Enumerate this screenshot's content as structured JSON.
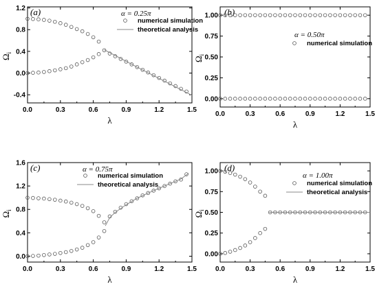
{
  "chart_data": [
    {
      "type": "scatter",
      "panel_label": "(a)",
      "alpha_label": "α = 0.25π",
      "xlabel": "λ",
      "ylabel": "Ω",
      "ylabel_sub": "i",
      "xlim": [
        0,
        1.5
      ],
      "ylim": [
        -0.55,
        1.22
      ],
      "xticks": [
        "0.0",
        "0.3",
        "0.6",
        "0.9",
        "1.2",
        "1.5"
      ],
      "xtick_values": [
        0,
        0.3,
        0.6,
        0.9,
        1.2,
        1.5
      ],
      "yticks": [
        "-0.4",
        "0.0",
        "0.4",
        "0.8",
        "1.2"
      ],
      "ytick_values": [
        -0.4,
        0,
        0.4,
        0.8,
        1.2
      ],
      "legend": [
        "numerical simulation",
        "theoretical    analysis"
      ],
      "series": [
        {
          "name": "numerical simulation",
          "kind": "markers",
          "points": [
            [
              0.0,
              1.0
            ],
            [
              0.05,
              0.996
            ],
            [
              0.1,
              0.99
            ],
            [
              0.15,
              0.98
            ],
            [
              0.2,
              0.965
            ],
            [
              0.25,
              0.945
            ],
            [
              0.3,
              0.92
            ],
            [
              0.35,
              0.89
            ],
            [
              0.4,
              0.85
            ],
            [
              0.45,
              0.81
            ],
            [
              0.5,
              0.77
            ],
            [
              0.55,
              0.72
            ],
            [
              0.6,
              0.66
            ],
            [
              0.65,
              0.58
            ],
            [
              0.0,
              0.0
            ],
            [
              0.05,
              0.005
            ],
            [
              0.1,
              0.01
            ],
            [
              0.15,
              0.02
            ],
            [
              0.2,
              0.035
            ],
            [
              0.25,
              0.05
            ],
            [
              0.3,
              0.07
            ],
            [
              0.35,
              0.09
            ],
            [
              0.4,
              0.12
            ],
            [
              0.45,
              0.16
            ],
            [
              0.5,
              0.2
            ],
            [
              0.55,
              0.24
            ],
            [
              0.6,
              0.29
            ],
            [
              0.65,
              0.35
            ],
            [
              0.7,
              0.42
            ],
            [
              0.75,
              0.36
            ],
            [
              0.8,
              0.31
            ],
            [
              0.85,
              0.26
            ],
            [
              0.9,
              0.21
            ],
            [
              0.95,
              0.16
            ],
            [
              1.0,
              0.11
            ],
            [
              1.05,
              0.06
            ],
            [
              1.1,
              0.01
            ],
            [
              1.15,
              -0.04
            ],
            [
              1.2,
              -0.09
            ],
            [
              1.25,
              -0.14
            ],
            [
              1.3,
              -0.19
            ],
            [
              1.35,
              -0.24
            ],
            [
              1.4,
              -0.29
            ],
            [
              1.45,
              -0.34
            ]
          ]
        },
        {
          "name": "theoretical    analysis",
          "kind": "line",
          "points": [
            [
              0.7,
              0.43
            ],
            [
              1.0,
              0.11
            ],
            [
              1.5,
              -0.41
            ]
          ]
        }
      ]
    },
    {
      "type": "scatter",
      "panel_label": "(b)",
      "alpha_label": "α = 0.50π",
      "xlabel": "λ",
      "ylabel": "Ω",
      "ylabel_sub": "i",
      "xlim": [
        0,
        1.5
      ],
      "ylim": [
        -0.1,
        1.1
      ],
      "xticks": [
        "0.0",
        "0.3",
        "0.6",
        "0.9",
        "1.2",
        "1.5"
      ],
      "xtick_values": [
        0,
        0.3,
        0.6,
        0.9,
        1.2,
        1.5
      ],
      "yticks": [
        "0.00",
        "0.25",
        "0.50",
        "0.75",
        "1.00"
      ],
      "ytick_values": [
        0,
        0.25,
        0.5,
        0.75,
        1.0
      ],
      "legend": [
        "numerical simulation"
      ],
      "series": [
        {
          "name": "numerical simulation",
          "kind": "markers",
          "points": [
            [
              0.0,
              1.0
            ],
            [
              0.05,
              1.0
            ],
            [
              0.1,
              1.0
            ],
            [
              0.15,
              1.0
            ],
            [
              0.2,
              1.0
            ],
            [
              0.25,
              1.0
            ],
            [
              0.3,
              1.0
            ],
            [
              0.35,
              1.0
            ],
            [
              0.4,
              1.0
            ],
            [
              0.45,
              1.0
            ],
            [
              0.5,
              1.0
            ],
            [
              0.55,
              1.0
            ],
            [
              0.6,
              1.0
            ],
            [
              0.65,
              1.0
            ],
            [
              0.7,
              1.0
            ],
            [
              0.75,
              1.0
            ],
            [
              0.8,
              1.0
            ],
            [
              0.85,
              1.0
            ],
            [
              0.9,
              1.0
            ],
            [
              0.95,
              1.0
            ],
            [
              1.0,
              1.0
            ],
            [
              1.05,
              1.0
            ],
            [
              1.1,
              1.0
            ],
            [
              1.15,
              1.0
            ],
            [
              1.2,
              1.0
            ],
            [
              1.25,
              1.0
            ],
            [
              1.3,
              1.0
            ],
            [
              1.35,
              1.0
            ],
            [
              1.4,
              1.0
            ],
            [
              1.45,
              1.0
            ],
            [
              0.0,
              0.0
            ],
            [
              0.05,
              0.0
            ],
            [
              0.1,
              0.0
            ],
            [
              0.15,
              0.0
            ],
            [
              0.2,
              0.0
            ],
            [
              0.25,
              0.0
            ],
            [
              0.3,
              0.0
            ],
            [
              0.35,
              0.0
            ],
            [
              0.4,
              0.0
            ],
            [
              0.45,
              0.0
            ],
            [
              0.5,
              0.0
            ],
            [
              0.55,
              0.0
            ],
            [
              0.6,
              0.0
            ],
            [
              0.65,
              0.0
            ],
            [
              0.7,
              0.0
            ],
            [
              0.75,
              0.0
            ],
            [
              0.8,
              0.0
            ],
            [
              0.85,
              0.0
            ],
            [
              0.9,
              0.0
            ],
            [
              0.95,
              0.0
            ],
            [
              1.0,
              0.0
            ],
            [
              1.05,
              0.0
            ],
            [
              1.1,
              0.0
            ],
            [
              1.15,
              0.0
            ],
            [
              1.2,
              0.0
            ],
            [
              1.25,
              0.0
            ],
            [
              1.3,
              0.0
            ],
            [
              1.35,
              0.0
            ],
            [
              1.4,
              0.0
            ],
            [
              1.45,
              0.0
            ]
          ]
        }
      ]
    },
    {
      "type": "scatter",
      "panel_label": "(c)",
      "alpha_label": "α = 0.75π",
      "xlabel": "λ",
      "ylabel": "Ω",
      "ylabel_sub": "i",
      "xlim": [
        0,
        1.5
      ],
      "ylim": [
        -0.1,
        1.6
      ],
      "xticks": [
        "0.0",
        "0.3",
        "0.6",
        "0.9",
        "1.2",
        "1.5"
      ],
      "xtick_values": [
        0,
        0.3,
        0.6,
        0.9,
        1.2,
        1.5
      ],
      "yticks": [
        "0.0",
        "0.4",
        "0.8",
        "1.2",
        "1.6"
      ],
      "ytick_values": [
        0,
        0.4,
        0.8,
        1.2,
        1.6
      ],
      "legend": [
        "numerical simulation",
        "theoretical    analysis"
      ],
      "series": [
        {
          "name": "numerical simulation",
          "kind": "markers",
          "points": [
            [
              0.0,
              1.0
            ],
            [
              0.05,
              0.995
            ],
            [
              0.1,
              0.99
            ],
            [
              0.15,
              0.985
            ],
            [
              0.2,
              0.975
            ],
            [
              0.25,
              0.965
            ],
            [
              0.3,
              0.95
            ],
            [
              0.35,
              0.935
            ],
            [
              0.4,
              0.915
            ],
            [
              0.45,
              0.89
            ],
            [
              0.5,
              0.86
            ],
            [
              0.55,
              0.82
            ],
            [
              0.6,
              0.77
            ],
            [
              0.65,
              0.69
            ],
            [
              0.0,
              0.0
            ],
            [
              0.05,
              0.005
            ],
            [
              0.1,
              0.01
            ],
            [
              0.15,
              0.02
            ],
            [
              0.2,
              0.03
            ],
            [
              0.25,
              0.04
            ],
            [
              0.3,
              0.055
            ],
            [
              0.35,
              0.07
            ],
            [
              0.4,
              0.09
            ],
            [
              0.45,
              0.115
            ],
            [
              0.5,
              0.145
            ],
            [
              0.55,
              0.19
            ],
            [
              0.6,
              0.24
            ],
            [
              0.65,
              0.32
            ],
            [
              0.7,
              0.43
            ],
            [
              0.7,
              0.58
            ],
            [
              0.75,
              0.68
            ],
            [
              0.8,
              0.76
            ],
            [
              0.85,
              0.83
            ],
            [
              0.9,
              0.89
            ],
            [
              0.95,
              0.94
            ],
            [
              1.0,
              0.99
            ],
            [
              1.05,
              1.04
            ],
            [
              1.1,
              1.08
            ],
            [
              1.15,
              1.12
            ],
            [
              1.2,
              1.16
            ],
            [
              1.25,
              1.2
            ],
            [
              1.3,
              1.24
            ],
            [
              1.35,
              1.28
            ],
            [
              1.4,
              1.31
            ],
            [
              1.45,
              1.4
            ]
          ]
        },
        {
          "name": "theoretical    analysis",
          "kind": "line",
          "points": [
            [
              0.71,
              0.52
            ],
            [
              0.75,
              0.66
            ],
            [
              0.8,
              0.75
            ],
            [
              0.9,
              0.88
            ],
            [
              1.0,
              0.99
            ],
            [
              1.1,
              1.08
            ],
            [
              1.2,
              1.16
            ],
            [
              1.3,
              1.24
            ],
            [
              1.4,
              1.32
            ],
            [
              1.47,
              1.42
            ]
          ]
        }
      ]
    },
    {
      "type": "scatter",
      "panel_label": "(d)",
      "alpha_label": "α = 1.00π",
      "xlabel": "λ",
      "ylabel": "Ω",
      "ylabel_sub": "i",
      "xlim": [
        0,
        1.5
      ],
      "ylim": [
        -0.1,
        1.1
      ],
      "xticks": [
        "0.0",
        "0.3",
        "0.6",
        "0.9",
        "1.2",
        "1.5"
      ],
      "xtick_values": [
        0,
        0.3,
        0.6,
        0.9,
        1.2,
        1.5
      ],
      "yticks": [
        "0.00",
        "0.25",
        "0.50",
        "0.75",
        "1.00"
      ],
      "ytick_values": [
        0,
        0.25,
        0.5,
        0.75,
        1.0
      ],
      "legend": [
        "numerical simulation",
        "theoretical    analysis"
      ],
      "series": [
        {
          "name": "numerical simulation",
          "kind": "markers",
          "points": [
            [
              0.0,
              1.0
            ],
            [
              0.05,
              0.99
            ],
            [
              0.1,
              0.975
            ],
            [
              0.15,
              0.955
            ],
            [
              0.2,
              0.93
            ],
            [
              0.25,
              0.9
            ],
            [
              0.3,
              0.86
            ],
            [
              0.35,
              0.81
            ],
            [
              0.4,
              0.75
            ],
            [
              0.45,
              0.7
            ],
            [
              0.0,
              0.0
            ],
            [
              0.05,
              0.01
            ],
            [
              0.1,
              0.025
            ],
            [
              0.15,
              0.045
            ],
            [
              0.2,
              0.07
            ],
            [
              0.25,
              0.1
            ],
            [
              0.3,
              0.14
            ],
            [
              0.35,
              0.19
            ],
            [
              0.4,
              0.25
            ],
            [
              0.45,
              0.3
            ],
            [
              0.5,
              0.5
            ],
            [
              0.55,
              0.5
            ],
            [
              0.6,
              0.5
            ],
            [
              0.65,
              0.5
            ],
            [
              0.7,
              0.5
            ],
            [
              0.75,
              0.5
            ],
            [
              0.8,
              0.5
            ],
            [
              0.85,
              0.5
            ],
            [
              0.9,
              0.5
            ],
            [
              0.95,
              0.5
            ],
            [
              1.0,
              0.5
            ],
            [
              1.05,
              0.5
            ],
            [
              1.1,
              0.5
            ],
            [
              1.15,
              0.5
            ],
            [
              1.2,
              0.5
            ],
            [
              1.25,
              0.5
            ],
            [
              1.3,
              0.5
            ],
            [
              1.35,
              0.5
            ],
            [
              1.4,
              0.5
            ],
            [
              1.45,
              0.5
            ]
          ]
        },
        {
          "name": "theoretical    analysis",
          "kind": "line",
          "points": [
            [
              0.49,
              0.5
            ],
            [
              1.5,
              0.5
            ]
          ]
        }
      ]
    }
  ]
}
